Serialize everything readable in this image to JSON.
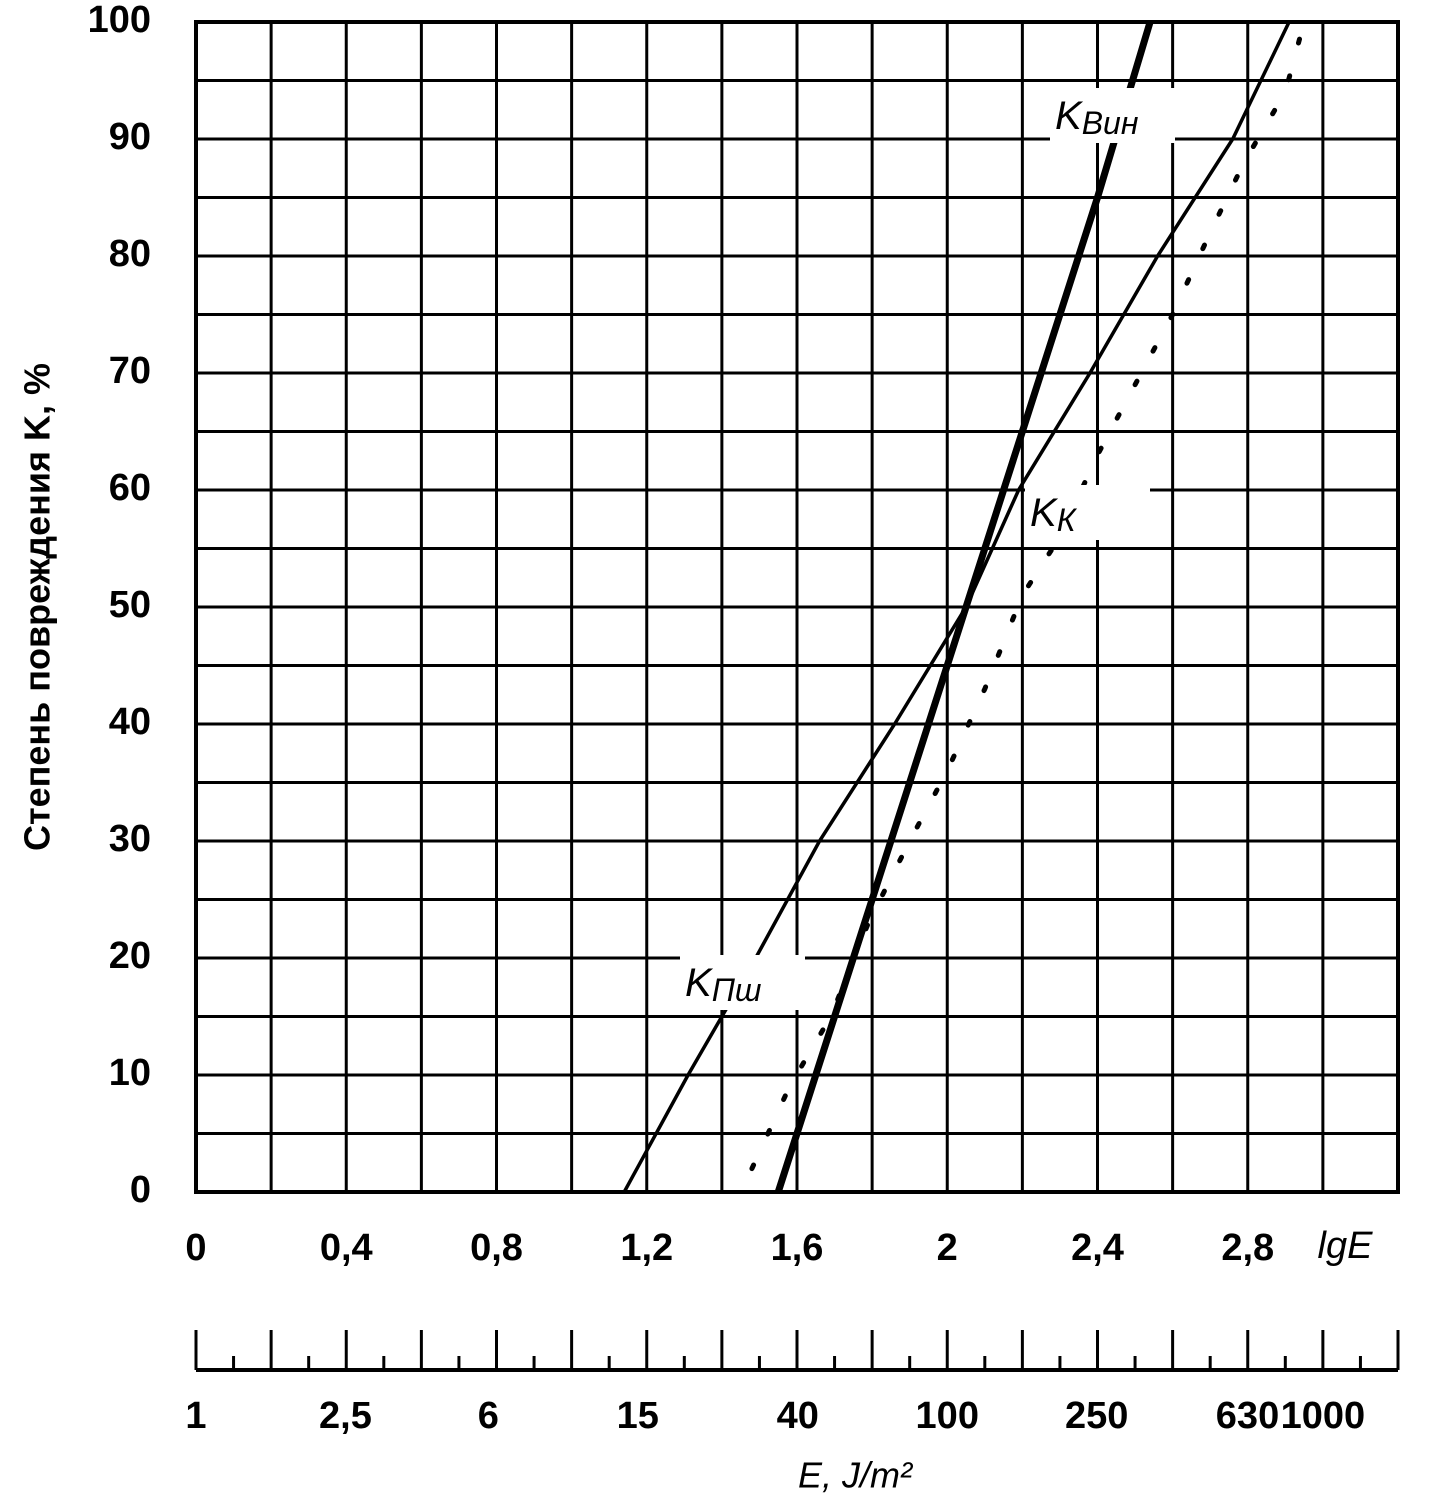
{
  "chart_data": {
    "type": "line",
    "ylabel": "Степень повреждения K, %",
    "xlabel": "lgE",
    "x2label": "E, J/m²",
    "xlim": [
      0,
      3.2
    ],
    "ylim": [
      0,
      100
    ],
    "xticks": [
      0,
      {
        "value": 0.4,
        "label": "0,4"
      },
      {
        "value": 0.8,
        "label": "0,8"
      },
      {
        "value": 1.2,
        "label": "1,2"
      },
      {
        "value": 1.6,
        "label": "1,6"
      },
      2,
      {
        "value": 2.4,
        "label": "2,4"
      },
      {
        "value": 2.8,
        "label": "2,8"
      }
    ],
    "xminorticks": [
      0.2,
      0.6,
      1.0,
      1.4,
      1.8,
      2.2,
      2.6,
      3.0,
      3.2
    ],
    "xfineticks": [
      0.1,
      0.3,
      0.5,
      0.7,
      0.9,
      1.1,
      1.3,
      1.5,
      1.7,
      1.9,
      2.1,
      2.3,
      2.5,
      2.7,
      2.9,
      3.1
    ],
    "yticks": [
      0,
      10,
      20,
      30,
      40,
      50,
      60,
      70,
      80,
      90,
      100
    ],
    "yminorticks": [
      5,
      15,
      25,
      35,
      45,
      55,
      65,
      75,
      85,
      95
    ],
    "x2log": true,
    "x2ticks": [
      1,
      {
        "value": 2.5,
        "label": "2,5"
      },
      6,
      15,
      40,
      100,
      250,
      630,
      1000
    ],
    "grid": true,
    "series": [
      {
        "name": "K",
        "name_sub": "Вин",
        "color": "#000000",
        "style": "thick",
        "x": [
          1.55,
          1.6,
          1.8,
          2.0,
          2.2,
          2.4,
          2.54
        ],
        "values": [
          0,
          5,
          25,
          45,
          65,
          85,
          100
        ]
      },
      {
        "name": "K",
        "name_sub": "Пш",
        "color": "#000000",
        "style": "thin",
        "x": [
          1.14,
          1.31,
          1.49,
          1.66,
          1.86,
          2.05,
          2.19,
          2.38,
          2.56,
          2.76,
          2.91
        ],
        "values": [
          0,
          10,
          20,
          30,
          40,
          50,
          60,
          70,
          80,
          90,
          100
        ]
      },
      {
        "name": "K",
        "name_sub": "К",
        "color": "#000000",
        "style": "dotted",
        "x": [
          1.48,
          1.58,
          1.69,
          1.79,
          1.9,
          2.0,
          2.1,
          2.2,
          2.3,
          2.4,
          2.5,
          2.6,
          2.7,
          2.79,
          2.9,
          2.95
        ],
        "values": [
          2,
          9,
          15,
          23,
          30,
          36,
          43,
          51,
          56,
          63,
          69,
          75,
          82,
          88,
          94,
          100
        ]
      }
    ]
  }
}
